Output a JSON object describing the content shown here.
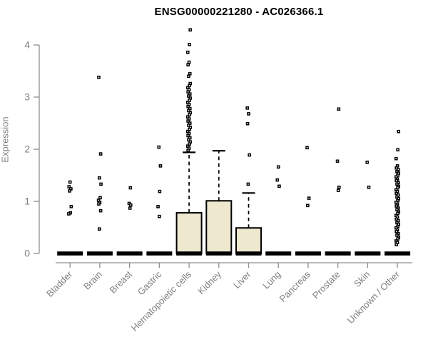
{
  "chart_data": {
    "type": "box",
    "title": "ENSG00000221280 - AC026366.1",
    "ylabel": "Expression",
    "xlabel": "",
    "ylim": [
      0,
      4.4
    ],
    "yticks": [
      0,
      1,
      2,
      3,
      4
    ],
    "grid": false,
    "legend": "none",
    "box_fill_color": "#EDE8CE",
    "box_edge_color": "#000000",
    "point_color": "#000000",
    "axis_color": "#8e8e8e",
    "tick_text_color": "#7f7f7f",
    "categories": [
      "Bladder",
      "Brain",
      "Breast",
      "Gastric",
      "Hematopoietic cells",
      "Kidney",
      "Liver",
      "Lung",
      "Pancreas",
      "Prostate",
      "Skin",
      "Unknown / Other"
    ],
    "boxes": [
      {
        "category": "Bladder",
        "q1": 0,
        "median": 0,
        "q3": 0,
        "whisker_low": 0,
        "whisker_high": 0
      },
      {
        "category": "Brain",
        "q1": 0,
        "median": 0,
        "q3": 0,
        "whisker_low": 0,
        "whisker_high": 0
      },
      {
        "category": "Breast",
        "q1": 0,
        "median": 0,
        "q3": 0,
        "whisker_low": 0,
        "whisker_high": 0
      },
      {
        "category": "Gastric",
        "q1": 0,
        "median": 0,
        "q3": 0,
        "whisker_low": 0,
        "whisker_high": 0
      },
      {
        "category": "Hematopoietic cells",
        "q1": 0,
        "median": 0,
        "q3": 0.78,
        "whisker_low": 0,
        "whisker_high": 1.94
      },
      {
        "category": "Kidney",
        "q1": 0,
        "median": 0,
        "q3": 1.01,
        "whisker_low": 0,
        "whisker_high": 1.97
      },
      {
        "category": "Liver",
        "q1": 0,
        "median": 0,
        "q3": 0.49,
        "whisker_low": 0,
        "whisker_high": 1.16
      },
      {
        "category": "Lung",
        "q1": 0,
        "median": 0,
        "q3": 0,
        "whisker_low": 0,
        "whisker_high": 0
      },
      {
        "category": "Pancreas",
        "q1": 0,
        "median": 0,
        "q3": 0,
        "whisker_low": 0,
        "whisker_high": 0
      },
      {
        "category": "Prostate",
        "q1": 0,
        "median": 0,
        "q3": 0,
        "whisker_low": 0,
        "whisker_high": 0
      },
      {
        "category": "Skin",
        "q1": 0,
        "median": 0,
        "q3": 0,
        "whisker_low": 0,
        "whisker_high": 0
      },
      {
        "category": "Unknown / Other",
        "q1": 0,
        "median": 0,
        "q3": 0,
        "whisker_low": 0,
        "whisker_high": 0
      }
    ],
    "outlier_points": [
      [
        1.37,
        1.28,
        1.24,
        1.2,
        0.9,
        0.78,
        0.76
      ],
      [
        3.38,
        1.91,
        1.45,
        1.33,
        1.07,
        1.02,
        0.98,
        0.95,
        0.82,
        0.47
      ],
      [
        1.26,
        0.96,
        0.93,
        0.87
      ],
      [
        2.04,
        1.68,
        1.19,
        0.9,
        0.71
      ],
      [
        4.29,
        4.01,
        3.86,
        3.67,
        3.62,
        3.45,
        3.4,
        3.26,
        3.22,
        3.18,
        3.14,
        3.1,
        3.06,
        3.02,
        2.98,
        2.94,
        2.9,
        2.86,
        2.82,
        2.78,
        2.74,
        2.7,
        2.66,
        2.62,
        2.58,
        2.54,
        2.5,
        2.46,
        2.42,
        2.38,
        2.34,
        2.3,
        2.26,
        2.22,
        2.18,
        2.14,
        2.1,
        2.06,
        2.02,
        1.98
      ],
      [],
      [
        2.79,
        2.68,
        2.49,
        1.89,
        1.33
      ],
      [
        1.66,
        1.41,
        1.29
      ],
      [
        2.03,
        1.06,
        0.92
      ],
      [
        2.77,
        1.77,
        1.27,
        1.21
      ],
      [
        1.75,
        1.27
      ],
      [
        2.34,
        1.99,
        1.82,
        1.68,
        1.64,
        1.61,
        1.57,
        1.54,
        1.5,
        1.47,
        1.43,
        1.4,
        1.36,
        1.33,
        1.29,
        1.26,
        1.22,
        1.19,
        1.15,
        1.12,
        1.08,
        1.05,
        1.01,
        0.98,
        0.94,
        0.91,
        0.87,
        0.84,
        0.8,
        0.77,
        0.73,
        0.7,
        0.66,
        0.63,
        0.59,
        0.56,
        0.52,
        0.49,
        0.45,
        0.42,
        0.38,
        0.35,
        0.31,
        0.28,
        0.24,
        0.21,
        0.17
      ]
    ]
  }
}
